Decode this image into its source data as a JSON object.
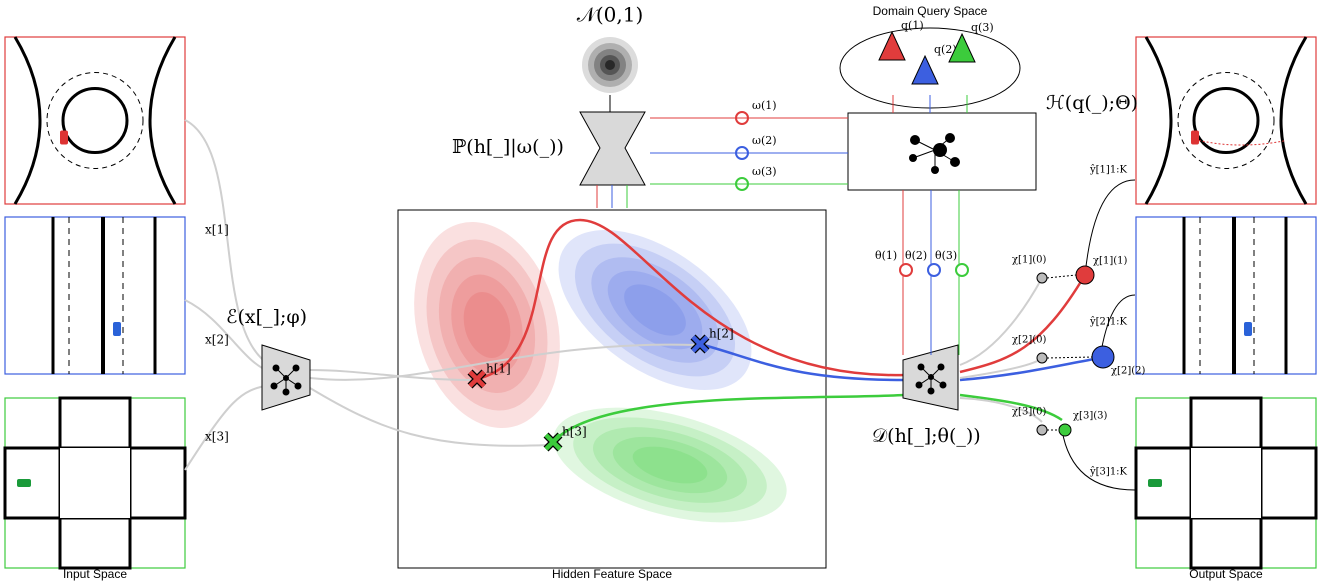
{
  "panels": {
    "input": "Input Space",
    "hidden": "Hidden Feature Space",
    "output": "Output Space"
  },
  "query": {
    "title": "Domain Query Space",
    "items": [
      "q(1)",
      "q(2)",
      "q(3)"
    ]
  },
  "noise": "𝒩(0,1)",
  "generator": "ℙ(h[_]|ω(_))",
  "hypernetwork": "ℋ(q(_);Θ)",
  "encoder": "ℰ(x[_];φ)",
  "decoder": "𝒟(h[_];θ(_))",
  "inputs": [
    "x[1]",
    "x[2]",
    "x[3]"
  ],
  "hidden_points": [
    "h[1]",
    "h[2]",
    "h[3]"
  ],
  "omega": [
    "ω(1)",
    "ω(2)",
    "ω(3)"
  ],
  "theta": [
    "θ(1)",
    "θ(2)",
    "θ(3)"
  ],
  "chi0": [
    "χ[1](0)",
    "χ[2](0)",
    "χ[3](0)"
  ],
  "chi": [
    "χ[1](1)",
    "χ[2](2)",
    "χ[3](3)"
  ],
  "outputs": [
    "ŷ[1]1:K",
    "ŷ[2]1:K",
    "ŷ[3]1:K"
  ]
}
